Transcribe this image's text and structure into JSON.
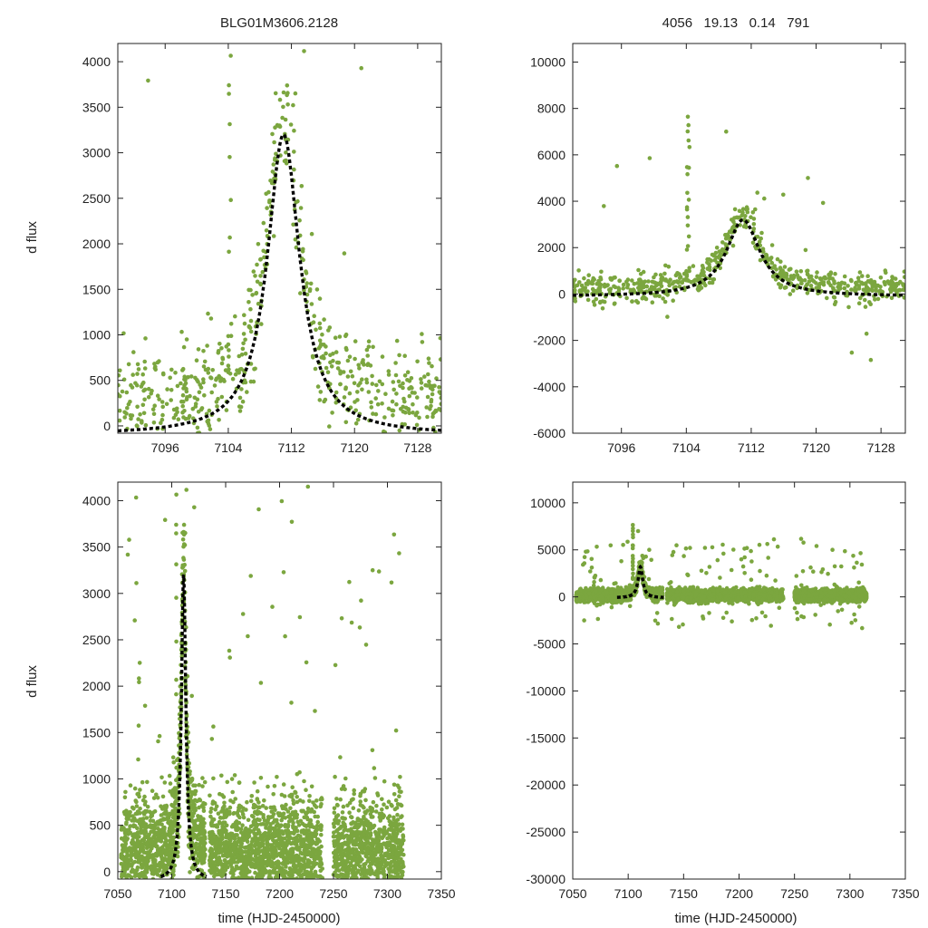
{
  "figure": {
    "title_left": "BLG01M3606.2128",
    "title_right": "4056   19.13   0.14   791",
    "ylabel": "d flux",
    "xlabel": "time (HJD-2450000)",
    "point_color": "#7ba63f",
    "fit_color": "#000000"
  },
  "chart_data": [
    {
      "id": "zoom_top_left",
      "type": "scatter",
      "xlim": [
        7090,
        7131
      ],
      "ylim": [
        -80,
        4200
      ],
      "xticks": [
        7096,
        7104,
        7112,
        7120,
        7128
      ],
      "yticks": [
        0,
        500,
        1000,
        1500,
        2000,
        2500,
        3000,
        3500,
        4000
      ],
      "xlabel": "",
      "ylabel": "d flux",
      "title": "BLG01M3606.2128",
      "series": [
        {
          "name": "data",
          "style": "points"
        },
        {
          "name": "fit",
          "style": "dashed-line",
          "model": {
            "t0": 7111,
            "peak": 3200,
            "width": 2.5,
            "offset": -100
          }
        }
      ]
    },
    {
      "id": "zoom_top_right",
      "type": "scatter",
      "xlim": [
        7090,
        7131
      ],
      "ylim": [
        -6000,
        10800
      ],
      "xticks": [
        7096,
        7104,
        7112,
        7120,
        7128
      ],
      "yticks": [
        -6000,
        -4000,
        -2000,
        0,
        2000,
        4000,
        6000,
        8000,
        10000
      ],
      "xlabel": "",
      "ylabel": "",
      "title": "4056   19.13   0.14   791",
      "series": [
        {
          "name": "data",
          "style": "points"
        },
        {
          "name": "fit",
          "style": "dashed-line",
          "model": {
            "t0": 7111,
            "peak": 3200,
            "width": 2.5,
            "offset": -100
          }
        }
      ]
    },
    {
      "id": "full_bottom_left",
      "type": "scatter",
      "xlim": [
        7050,
        7350
      ],
      "ylim": [
        -80,
        4200
      ],
      "xticks": [
        7050,
        7100,
        7150,
        7200,
        7250,
        7300,
        7350
      ],
      "yticks": [
        0,
        500,
        1000,
        1500,
        2000,
        2500,
        3000,
        3500,
        4000
      ],
      "xlabel": "time (HJD-2450000)",
      "ylabel": "d flux",
      "series": [
        {
          "name": "data",
          "style": "points"
        },
        {
          "name": "fit",
          "style": "dashed-line",
          "model": {
            "t0": 7111,
            "peak": 3200,
            "width": 2.5,
            "offset": -100
          }
        }
      ]
    },
    {
      "id": "full_bottom_right",
      "type": "scatter",
      "xlim": [
        7050,
        7350
      ],
      "ylim": [
        -30000,
        12200
      ],
      "xticks": [
        7050,
        7100,
        7150,
        7200,
        7250,
        7300,
        7350
      ],
      "yticks": [
        -30000,
        -25000,
        -20000,
        -15000,
        -10000,
        -5000,
        0,
        5000,
        10000
      ],
      "xlabel": "time (HJD-2450000)",
      "ylabel": "",
      "series": [
        {
          "name": "data",
          "style": "points"
        },
        {
          "name": "fit",
          "style": "dashed-line",
          "model": {
            "t0": 7111,
            "peak": 3200,
            "width": 2.5,
            "offset": -100
          }
        }
      ]
    }
  ]
}
